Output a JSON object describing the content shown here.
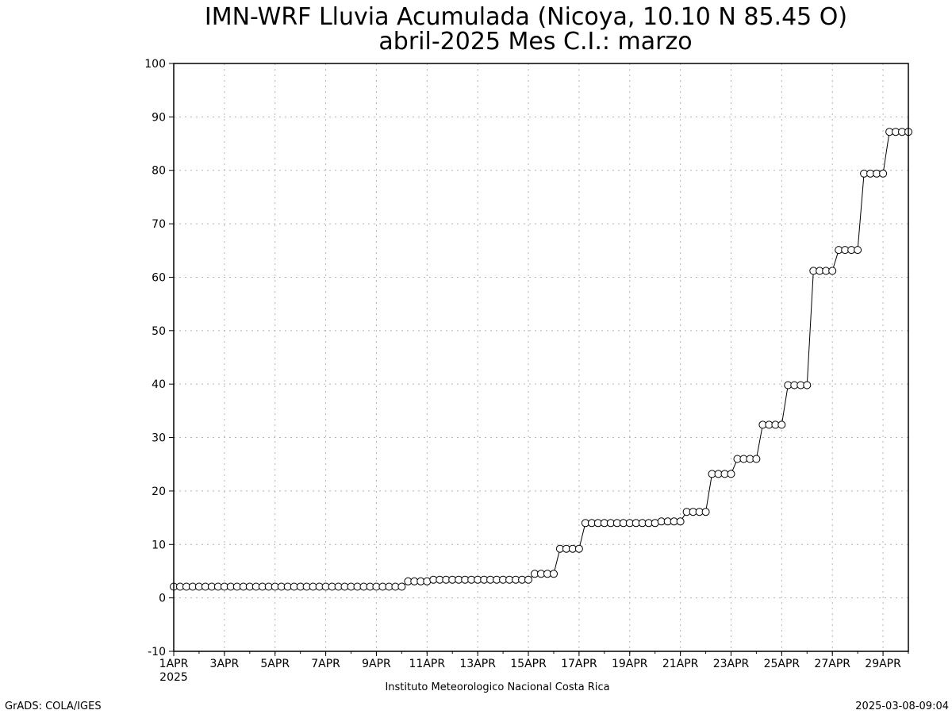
{
  "chart_data": {
    "type": "line",
    "title": "IMN-WRF  Lluvia Acumulada (Nicoya, 10.10  N 85.45  O)",
    "subtitle": "abril-2025 Mes C.I.: marzo",
    "xlabel": "",
    "ylabel": "",
    "ylim": [
      -10,
      100
    ],
    "xlim": [
      1,
      30
    ],
    "y_ticks": [
      -10,
      0,
      10,
      20,
      30,
      40,
      50,
      60,
      70,
      80,
      90,
      100
    ],
    "x_ticks": [
      {
        "day": 1,
        "label": "1APR"
      },
      {
        "day": 3,
        "label": "3APR"
      },
      {
        "day": 5,
        "label": "5APR"
      },
      {
        "day": 7,
        "label": "7APR"
      },
      {
        "day": 9,
        "label": "9APR"
      },
      {
        "day": 11,
        "label": "11APR"
      },
      {
        "day": 13,
        "label": "13APR"
      },
      {
        "day": 15,
        "label": "15APR"
      },
      {
        "day": 17,
        "label": "17APR"
      },
      {
        "day": 19,
        "label": "19APR"
      },
      {
        "day": 21,
        "label": "21APR"
      },
      {
        "day": 23,
        "label": "23APR"
      },
      {
        "day": 25,
        "label": "25APR"
      },
      {
        "day": 27,
        "label": "27APR"
      },
      {
        "day": 29,
        "label": "29APR"
      }
    ],
    "year_label": "2025",
    "grid": true,
    "marker": "open-circle",
    "series": [
      {
        "step_days": 0.25,
        "start_day": 1,
        "values": [
          2.1,
          2.1,
          2.1,
          2.1,
          2.1,
          2.1,
          2.1,
          2.1,
          2.1,
          2.1,
          2.1,
          2.1,
          2.1,
          2.1,
          2.1,
          2.1,
          2.1,
          2.1,
          2.1,
          2.1,
          2.1,
          2.1,
          2.1,
          2.1,
          2.1,
          2.1,
          2.1,
          2.1,
          2.1,
          2.1,
          2.1,
          2.1,
          2.1,
          2.1,
          2.1,
          2.1,
          2.1,
          3.1,
          3.1,
          3.1,
          3.1,
          3.4,
          3.4,
          3.4,
          3.4,
          3.4,
          3.4,
          3.4,
          3.4,
          3.4,
          3.4,
          3.4,
          3.4,
          3.4,
          3.4,
          3.4,
          3.4,
          4.5,
          4.5,
          4.5,
          4.5,
          9.2,
          9.2,
          9.2,
          9.2,
          14.0,
          14.0,
          14.0,
          14.0,
          14.0,
          14.0,
          14.0,
          14.0,
          14.0,
          14.0,
          14.0,
          14.0,
          14.3,
          14.3,
          14.3,
          14.3,
          16.1,
          16.1,
          16.1,
          16.1,
          23.2,
          23.2,
          23.2,
          23.2,
          26.0,
          26.0,
          26.0,
          26.0,
          32.4,
          32.4,
          32.4,
          32.4,
          39.8,
          39.8,
          39.8,
          39.8,
          61.2,
          61.2,
          61.2,
          61.2,
          65.1,
          65.1,
          65.1,
          65.1,
          79.4,
          79.4,
          79.4,
          79.4,
          87.2,
          87.2,
          87.2,
          87.2
        ]
      }
    ]
  },
  "footer": {
    "institution": "Instituto Meteorologico Nacional Costa Rica",
    "credit": "GrADS: COLA/IGES",
    "timestamp": "2025-03-08-09:04"
  }
}
